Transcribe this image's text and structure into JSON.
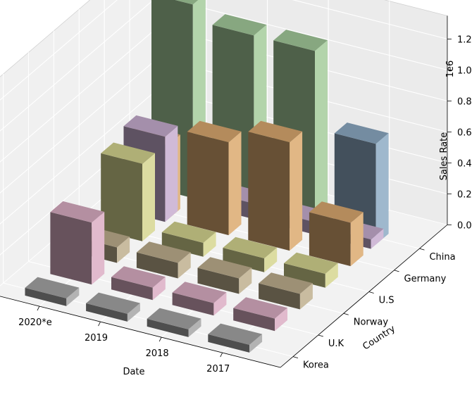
{
  "chart_data": {
    "type": "bar3d",
    "title": "",
    "xlabel": "Date",
    "ylabel": "Country",
    "zlabel": "Sales Rate",
    "z_multiplier_label": "1e6",
    "dates": [
      "2020*e",
      "2019",
      "2018",
      "2017"
    ],
    "countries": [
      "Korea",
      "U.K",
      "Norway",
      "U.S",
      "Germany",
      "China"
    ],
    "z_ticks": [
      "0.0",
      "0.2",
      "0.4",
      "0.6",
      "0.8",
      "1.0",
      "1.2"
    ],
    "zlim": [
      0,
      1250000
    ],
    "series": [
      {
        "country": "Korea",
        "color": "#a6a6a6",
        "values": [
          50000,
          50000,
          50000,
          50000
        ]
      },
      {
        "country": "U.K",
        "color": "#dcaec4",
        "values": [
          400000,
          80000,
          80000,
          80000
        ]
      },
      {
        "country": "Norway",
        "color": "#bfb08f",
        "values": [
          100000,
          100000,
          100000,
          100000
        ]
      },
      {
        "country": "U.S",
        "color": "#d6d690",
        "values": [
          500000,
          90000,
          90000,
          90000
        ]
      },
      {
        "country": "Germany",
        "color": "#dcaa70",
        "values": [
          480000,
          600000,
          700000,
          280000
        ]
      },
      {
        "country": "China",
        "color": "#a5cc9c",
        "last_color": "#8eabc4",
        "values": [
          1250000,
          1150000,
          1150000,
          650000
        ]
      }
    ],
    "extra_bars": [
      {
        "date": "2020*e",
        "country_pos": 4.4,
        "color": "#c8aed0",
        "value": 550000
      },
      {
        "date": "2019",
        "country_pos": 5.3,
        "color": "#c8aed0",
        "value": 100000
      },
      {
        "date": "2018",
        "country_pos": 5.3,
        "color": "#c8aed0",
        "value": 80000
      },
      {
        "date": "2017",
        "country_pos": 5.3,
        "color": "#c8aed0",
        "value": 60000
      }
    ]
  }
}
